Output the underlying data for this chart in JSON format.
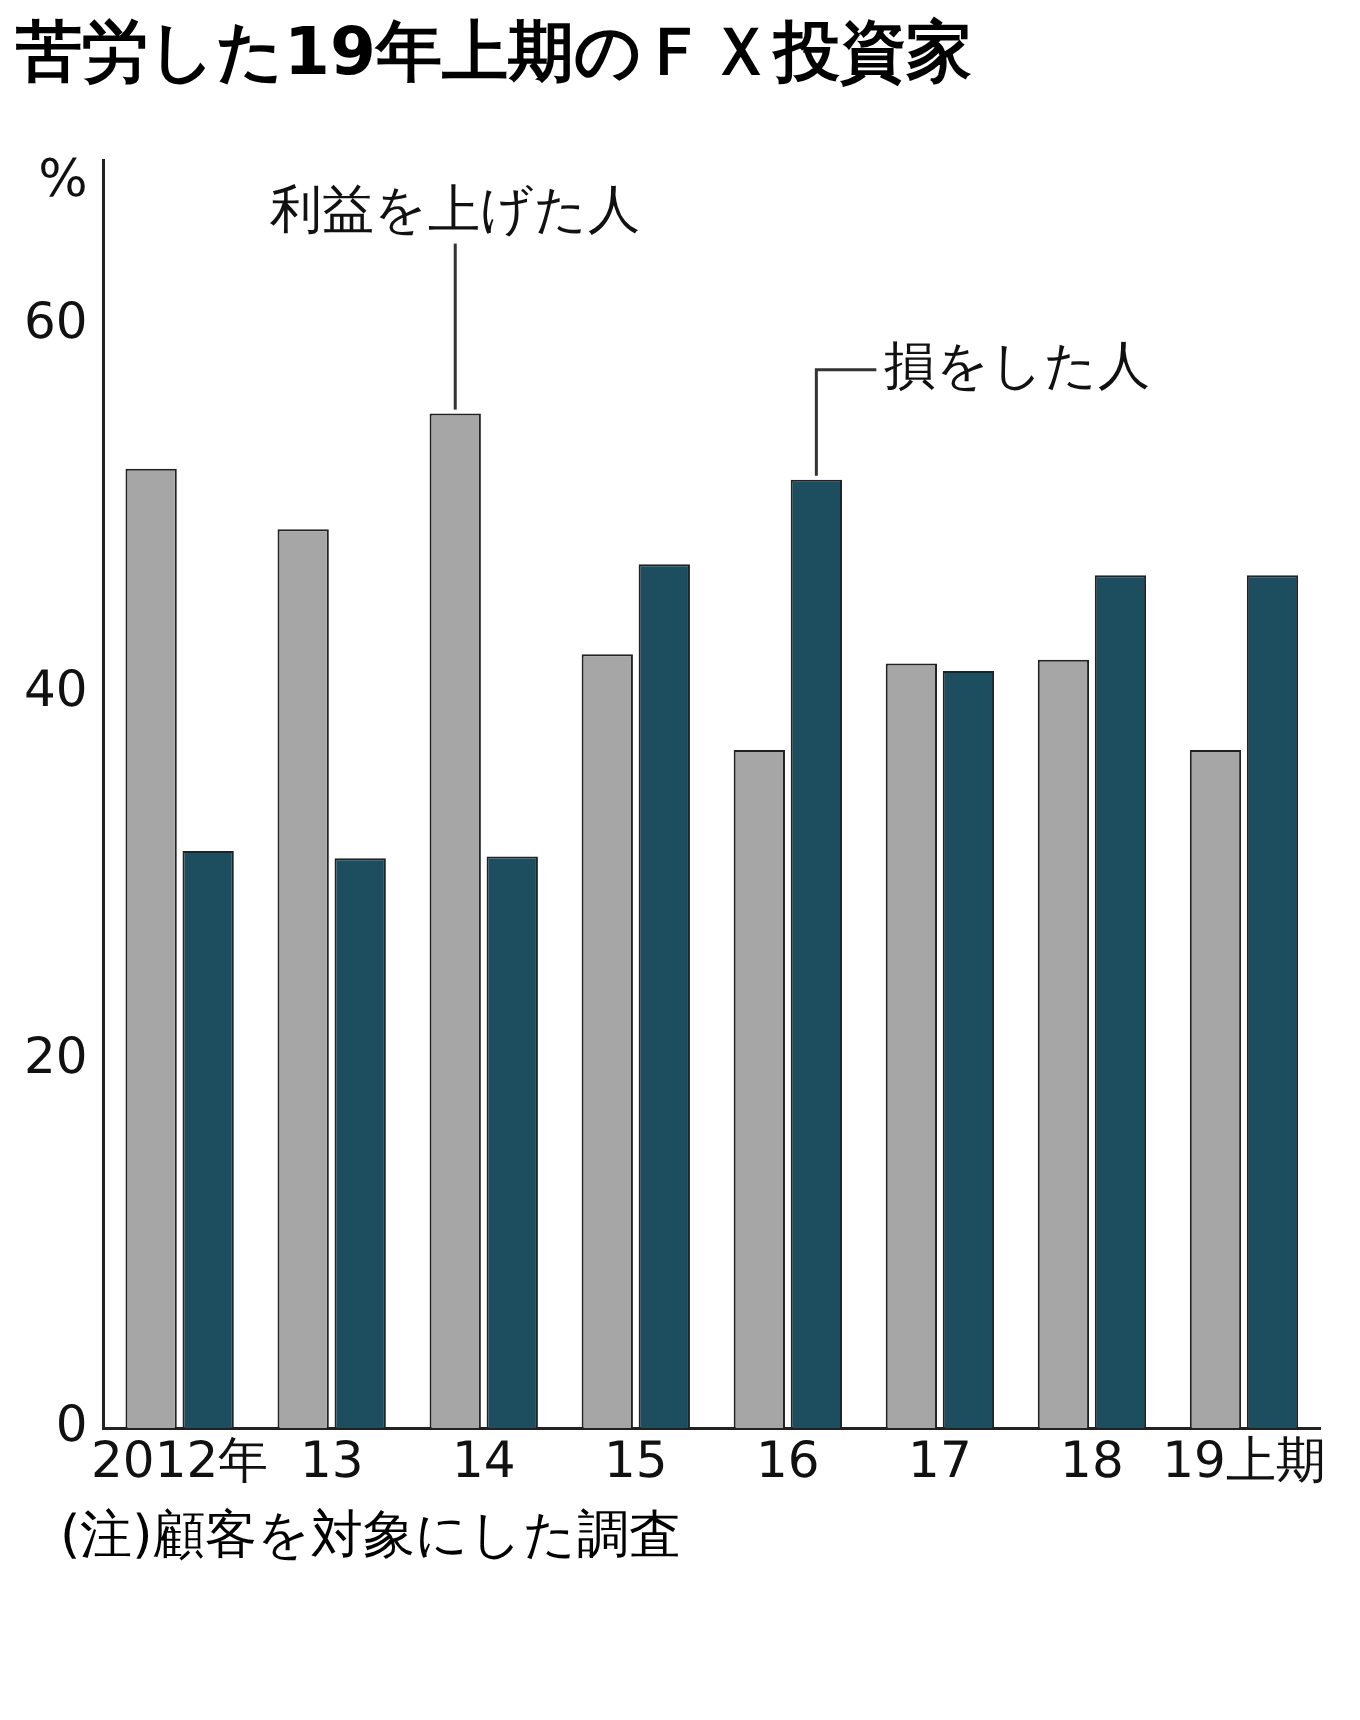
{
  "chart_data": {
    "type": "bar",
    "title": "苦労した19年上期のＦＸ投資家",
    "ylabel": "%",
    "categories": [
      "2012年",
      "13",
      "14",
      "15",
      "16",
      "17",
      "18",
      "19上期"
    ],
    "series": [
      {
        "name": "利益を上げた人",
        "color": "#a6a6a6",
        "values": [
          52.2,
          48.9,
          55.2,
          42.1,
          36.9,
          41.6,
          41.8,
          36.9
        ]
      },
      {
        "name": "損をした人",
        "color": "#1d4e5f",
        "values": [
          31.4,
          31.0,
          31.1,
          47.0,
          51.6,
          41.2,
          46.4,
          46.4
        ]
      }
    ],
    "ylim": [
      0,
      69
    ],
    "yticks": [
      0,
      20,
      40,
      60
    ],
    "grid": false,
    "legend": false,
    "annotations": [
      "(注)顧客を対象にした調査"
    ]
  }
}
